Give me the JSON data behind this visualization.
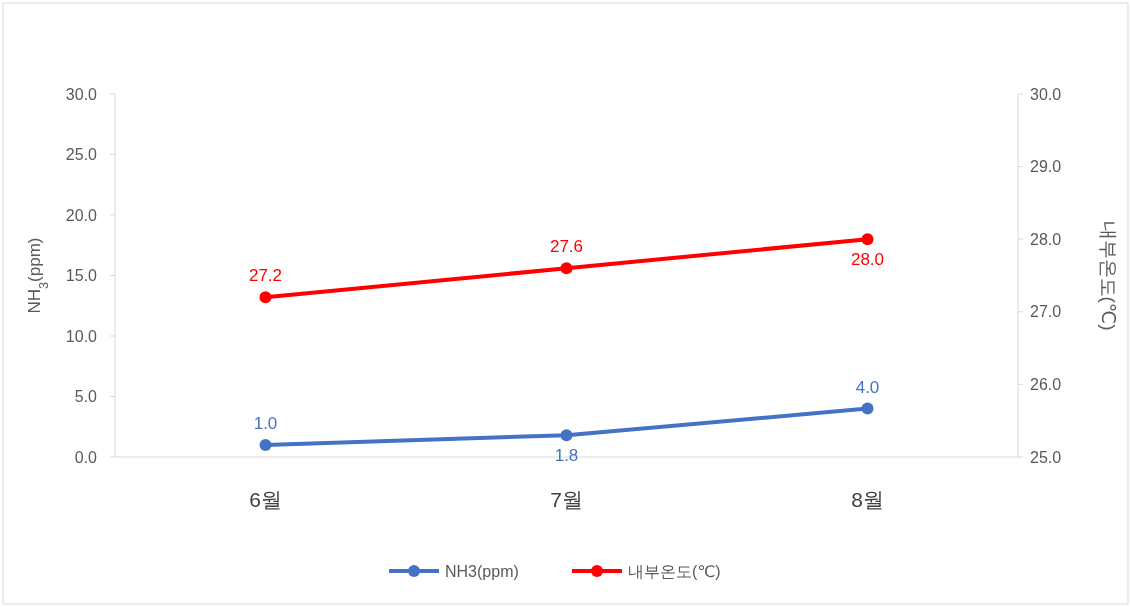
{
  "chart_data": {
    "type": "line",
    "categories": [
      "6월",
      "7월",
      "8월"
    ],
    "ylabel": "NH$_{3}$(ppm)",
    "y2label": "내부온도(℃)",
    "ylim": [
      0,
      30
    ],
    "yticks": [
      {
        "value": 0,
        "label": "0.0"
      },
      {
        "value": 5,
        "label": "5.0"
      },
      {
        "value": 10,
        "label": "10.0"
      },
      {
        "value": 15,
        "label": "15.0"
      },
      {
        "value": 20,
        "label": "20.0"
      },
      {
        "value": 25,
        "label": "25.0"
      },
      {
        "value": 30,
        "label": "30.0"
      }
    ],
    "y2lim": [
      25,
      30
    ],
    "y2ticks": [
      {
        "value": 25,
        "label": "25.0"
      },
      {
        "value": 26,
        "label": "26.0"
      },
      {
        "value": 27,
        "label": "27.0"
      },
      {
        "value": 28,
        "label": "28.0"
      },
      {
        "value": 29,
        "label": "29.0"
      },
      {
        "value": 30,
        "label": "30.0"
      }
    ],
    "series": [
      {
        "name": "NH3(ppm)",
        "color": "#4472c4",
        "values": [
          1.0,
          1.8,
          4.0
        ],
        "value_labels": [
          "1.0",
          "1.8",
          "4.0"
        ]
      },
      {
        "name": "내부온도(℃)",
        "color": "#ff0000",
        "axis": "y2",
        "values": [
          27.2,
          27.6,
          28.0
        ],
        "value_labels": [
          "27.2",
          "27.6",
          "28.0"
        ]
      }
    ],
    "legend": "bottom",
    "marker": "circle",
    "line_style": "solid",
    "grid": false
  }
}
